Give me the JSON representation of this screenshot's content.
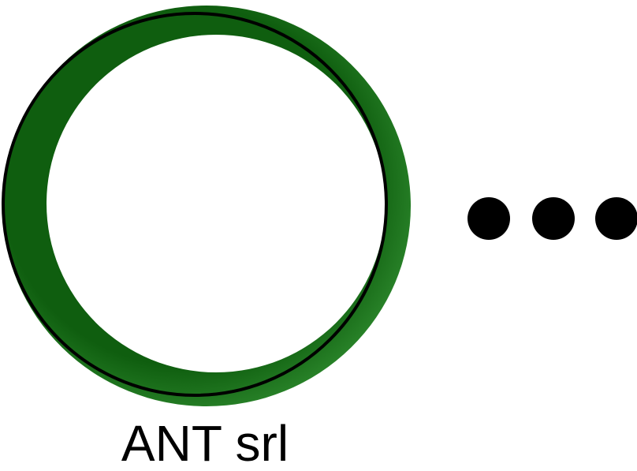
{
  "logo": {
    "name": "ANT srl",
    "ring_color": "#1f6e1f",
    "ring_highlight": "#2e8a2e",
    "outline_color": "#000000",
    "dots_color": "#000000",
    "dots_count": 3
  }
}
